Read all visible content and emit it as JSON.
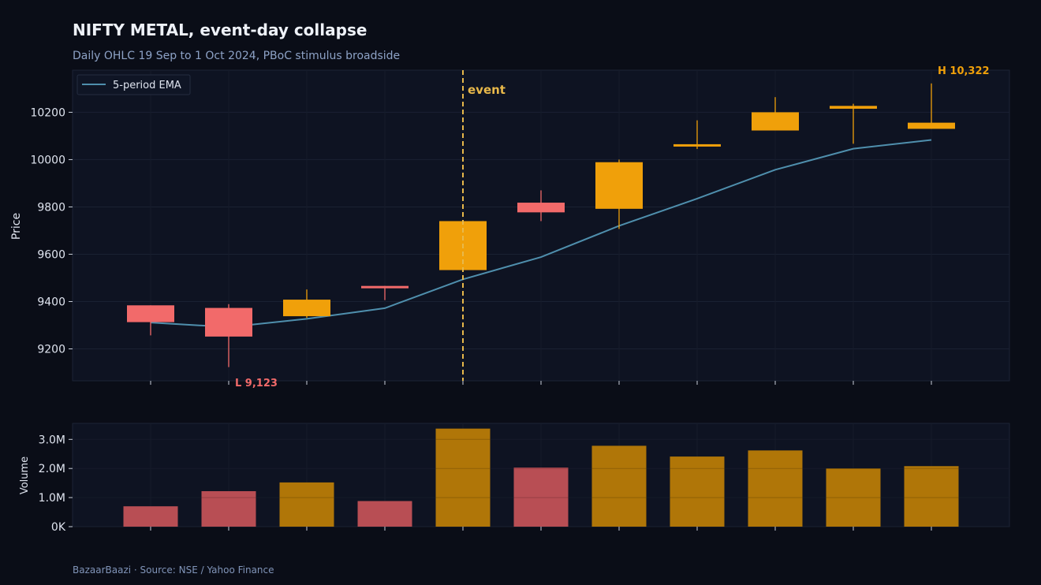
{
  "title": "NIFTY METAL, event-day collapse",
  "subtitle": "Daily OHLC 19 Sep to 1 Oct 2024, PBoC stimulus broadside",
  "footer": "BazaarBaazi  ·  Source: NSE / Yahoo Finance",
  "colors": {
    "background": "#0a0d17",
    "panel": "#0e1322",
    "up": "#f0a00a",
    "down": "#f26a6a",
    "ema": "#4f8fad",
    "event": "#e8b84a",
    "vol_up": "#b07608",
    "vol_down": "#b84e54"
  },
  "chart_data": [
    {
      "type": "candlestick",
      "ylabel": "Price",
      "ylim": [
        9065,
        10378
      ],
      "yticks": [
        9200,
        9400,
        9600,
        9800,
        10000,
        10200
      ],
      "legend": {
        "label": "5-period EMA",
        "placement": "top-left"
      },
      "grid": true,
      "candles": [
        {
          "open": 9384,
          "high": 9384,
          "low": 9257,
          "close": 9313
        },
        {
          "open": 9373,
          "high": 9389,
          "low": 9123,
          "close": 9252
        },
        {
          "open": 9338,
          "high": 9451,
          "low": 9331,
          "close": 9408
        },
        {
          "open": 9466,
          "high": 9466,
          "low": 9406,
          "close": 9456
        },
        {
          "open": 9533,
          "high": 9740,
          "low": 9525,
          "close": 9740
        },
        {
          "open": 9818,
          "high": 9870,
          "low": 9740,
          "close": 9777
        },
        {
          "open": 9792,
          "high": 10000,
          "low": 9707,
          "close": 9989
        },
        {
          "open": 10061,
          "high": 10166,
          "low": 10045,
          "close": 10065
        },
        {
          "open": 10123,
          "high": 10264,
          "low": 10123,
          "close": 10200
        },
        {
          "open": 10215,
          "high": 10236,
          "low": 10067,
          "close": 10227
        },
        {
          "open": 10130,
          "high": 10322,
          "low": 10130,
          "close": 10156
        }
      ],
      "ema": [
        9311,
        9292,
        9327,
        9372,
        9494,
        9588,
        9720,
        9835,
        9957,
        10046,
        10083
      ],
      "event_index": 4,
      "event_label": "event",
      "high_annotation": {
        "index": 10,
        "text": "H 10,322"
      },
      "low_annotation": {
        "index": 1,
        "text": "L 9,123"
      }
    },
    {
      "type": "bar",
      "ylabel": "Volume",
      "ylim": [
        0,
        3550000
      ],
      "yticks": [
        0,
        1000000,
        2000000,
        3000000
      ],
      "ytick_labels": [
        "0K",
        "1.0M",
        "2.0M",
        "3.0M"
      ],
      "grid": true,
      "values": [
        700000,
        1220000,
        1520000,
        880000,
        3370000,
        2030000,
        2780000,
        2410000,
        2620000,
        2000000,
        2080000
      ]
    }
  ]
}
